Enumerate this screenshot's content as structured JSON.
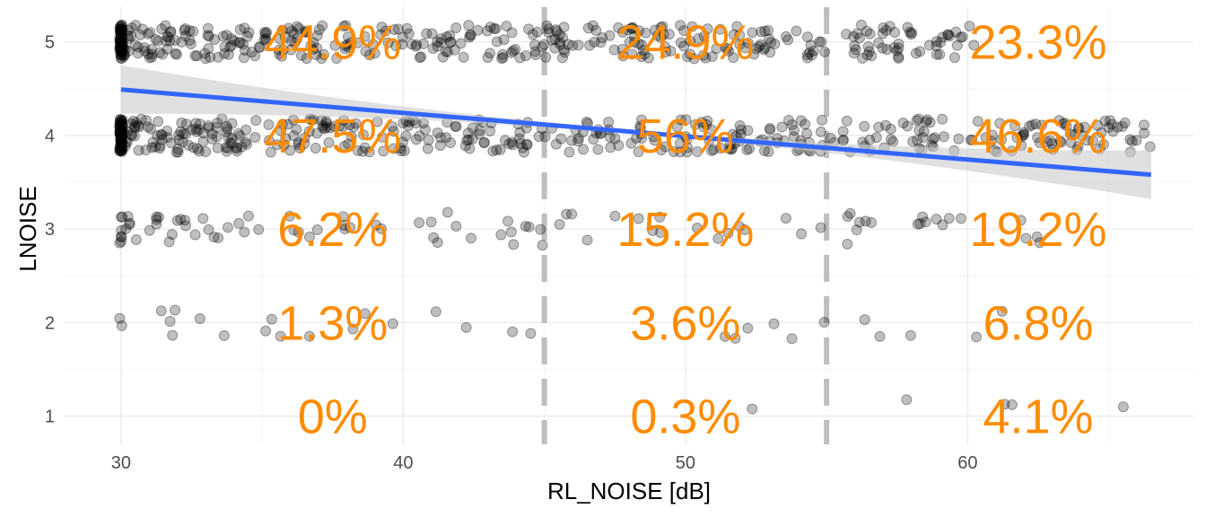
{
  "chart_data": {
    "type": "scatter",
    "xlabel": "RL_NOISE [dB]",
    "ylabel": "LNOISE",
    "xlim": [
      28,
      68
    ],
    "ylim": [
      0.7,
      5.37
    ],
    "x_ticks": [
      30,
      40,
      50,
      60
    ],
    "y_ticks": [
      1,
      2,
      3,
      4,
      5
    ],
    "grid": "on",
    "thresholds": [
      45,
      55
    ],
    "regression": {
      "x": [
        30,
        66.5
      ],
      "y": [
        4.49,
        3.58
      ],
      "ci_width_at_end": 0.24,
      "color": "#3366ff",
      "ci_color": "#cccccc"
    },
    "points": {
      "color": "#000000",
      "opacity": 0.25,
      "groups": [
        {
          "y": 5,
          "x_min": 30,
          "x_max": 60.5,
          "n": 430,
          "baseline_n": 60
        },
        {
          "y": 4,
          "x_min": 30,
          "x_max": 66.5,
          "n": 470,
          "baseline_n": 60
        },
        {
          "y": 3,
          "x_min": 30,
          "x_max": 63,
          "n": 95,
          "baseline_n": 6
        },
        {
          "y": 2,
          "x_min": 30,
          "x_max": 62,
          "n": 30,
          "baseline_n": 2
        },
        {
          "y": 1,
          "x_min": 51,
          "x_max": 66,
          "n": 5,
          "baseline_n": 0
        }
      ]
    },
    "annotations": {
      "color": "#ff8c00",
      "bins": [
        {
          "x": 37.5,
          "labels": {
            "5": "44.9%",
            "4": "47.5%",
            "3": "6.2%",
            "2": "1.3%",
            "1": "0%"
          }
        },
        {
          "x": 50,
          "labels": {
            "5": "24.9%",
            "4": "56%",
            "3": "15.2%",
            "2": "3.6%",
            "1": "0.3%"
          }
        },
        {
          "x": 62.5,
          "labels": {
            "5": "23.3%",
            "4": "46.6%",
            "3": "19.2%",
            "2": "6.8%",
            "1": "4.1%"
          }
        }
      ]
    }
  }
}
